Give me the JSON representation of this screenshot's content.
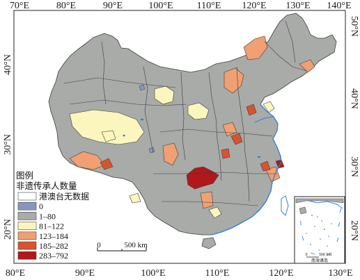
{
  "map": {
    "graticule": {
      "top": [
        "70°E",
        "80°E",
        "90°E",
        "100°E",
        "110°E",
        "120°E",
        "130°E",
        "140°E"
      ],
      "bottom": [
        "80°E",
        "90°E",
        "100°E",
        "110°E",
        "120°E",
        "130°E"
      ],
      "left": [
        "40°N",
        "30°N",
        "20°N"
      ],
      "right": [
        "50°N",
        "40°N",
        "30°N",
        "20°N"
      ]
    },
    "legend": {
      "title": "图例",
      "subtitle": "非遗传承人数量",
      "classes": [
        {
          "label": "港澳台无数据",
          "color": "#ffffff"
        },
        {
          "label": "0",
          "color": "#8696c0"
        },
        {
          "label": "1–80",
          "color": "#a8aba8"
        },
        {
          "label": "81–122",
          "color": "#fbf6bd"
        },
        {
          "label": "123–184",
          "color": "#f0a072"
        },
        {
          "label": "185–282",
          "color": "#d8542e"
        },
        {
          "label": "283–792",
          "color": "#b0181c"
        }
      ]
    },
    "scale_bar": {
      "zero": "0",
      "label": "500 km"
    },
    "inset": {
      "zero": "0",
      "label": "500 km",
      "caption": "南海诸岛"
    },
    "colors": {
      "border": "#3c3c3c",
      "coast": "#2f7fd6",
      "lake": "#2f7fd6"
    }
  }
}
